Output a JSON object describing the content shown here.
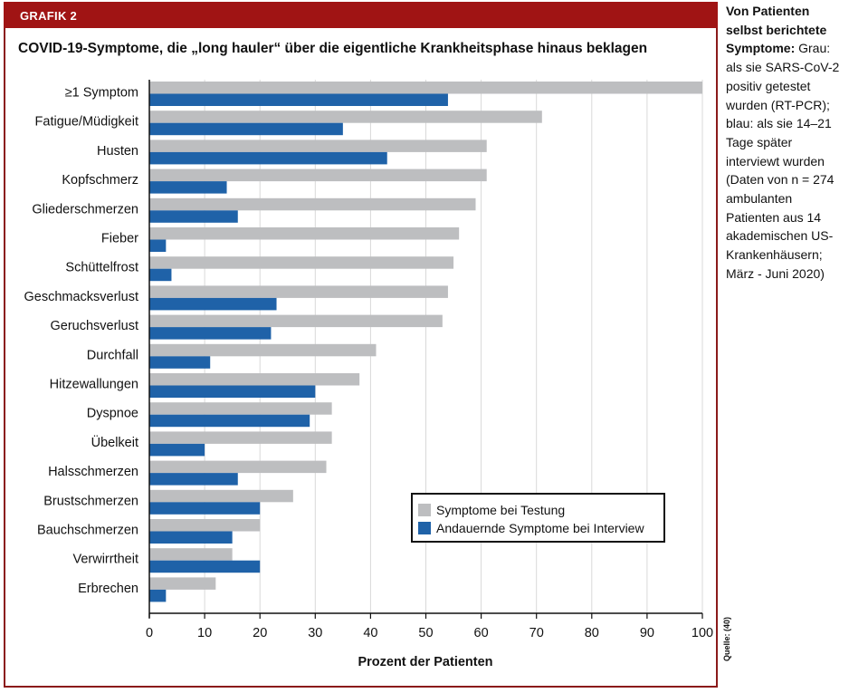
{
  "header": {
    "label": "GRAFIK 2"
  },
  "title": "COVID-19-Symptome, die „long hauler“ über die eigentliche Krankheitsphase hinaus beklagen",
  "sidebar": {
    "heading": "Von Patienten selbst berichtete Symptome:",
    "body": " Grau: als sie SARS-CoV-2 positiv getestet wurden (RT-PCR); blau: als sie 14–21 Tage später interviewt wurden (Daten von n = 274 ambulanten Patienten aus 14 akademischen US-Krankenhäusern; März - Juni 2020)"
  },
  "source": "Quelle: (40)",
  "colors": {
    "header": "#a01414",
    "gray": "#bdbec0",
    "blue": "#1f62a8",
    "axis": "#111111"
  },
  "chart_data": {
    "type": "bar",
    "orientation": "horizontal",
    "title": "COVID-19-Symptome, die „long hauler“ über die eigentliche Krankheitsphase hinaus beklagen",
    "xlabel": "Prozent der Patienten",
    "ylabel": "",
    "xlim": [
      0,
      100
    ],
    "xticks": [
      0,
      10,
      20,
      30,
      40,
      50,
      60,
      70,
      80,
      90,
      100
    ],
    "grid": "vertical",
    "legend_position": "bottom-right",
    "categories": [
      "≥1 Symptom",
      "Fatigue/Müdigkeit",
      "Husten",
      "Kopfschmerz",
      "Gliederschmerzen",
      "Fieber",
      "Schüttelfrost",
      "Geschmacksverlust",
      "Geruchsverlust",
      "Durchfall",
      "Hitzewallungen",
      "Dyspnoe",
      "Übelkeit",
      "Halsschmerzen",
      "Brustschmerzen",
      "Bauchschmerzen",
      "Verwirrtheit",
      "Erbrechen"
    ],
    "series": [
      {
        "name": "Symptome bei Testung",
        "color": "#bdbec0",
        "values": [
          100,
          71,
          61,
          61,
          59,
          56,
          55,
          54,
          53,
          41,
          38,
          33,
          33,
          32,
          26,
          20,
          15,
          12
        ]
      },
      {
        "name": "Andauernde Symptome bei Interview",
        "color": "#1f62a8",
        "values": [
          54,
          35,
          43,
          14,
          16,
          3,
          4,
          23,
          22,
          11,
          30,
          29,
          10,
          16,
          20,
          15,
          20,
          3
        ]
      }
    ]
  }
}
